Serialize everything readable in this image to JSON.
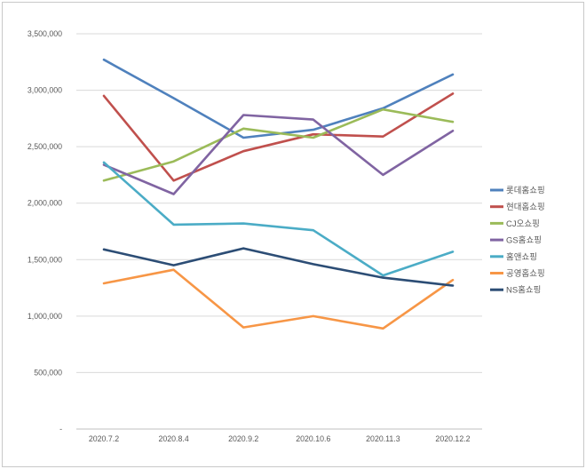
{
  "chart_data": {
    "type": "line",
    "title": "",
    "categories": [
      "2020.7.2",
      "2020.8.4",
      "2020.9.2",
      "2020.10.6",
      "2020.11.3",
      "2020.12.2"
    ],
    "series": [
      {
        "id": "lotte-home-shopping",
        "name": "롯데홈쇼핑",
        "color": "#4F81BD",
        "values": [
          3270000,
          2930000,
          2580000,
          2650000,
          2840000,
          3140000
        ]
      },
      {
        "id": "hyundai-home-shopping",
        "name": "현대홈쇼핑",
        "color": "#C0504D",
        "values": [
          2950000,
          2200000,
          2460000,
          2610000,
          2590000,
          2970000
        ]
      },
      {
        "id": "cj-o-shopping",
        "name": "CJ오쇼핑",
        "color": "#9BBB59",
        "values": [
          2200000,
          2370000,
          2660000,
          2580000,
          2830000,
          2720000
        ]
      },
      {
        "id": "gs-home-shopping",
        "name": "GS홈쇼핑",
        "color": "#8064A2",
        "values": [
          2340000,
          2080000,
          2780000,
          2740000,
          2250000,
          2640000
        ]
      },
      {
        "id": "home-and-shopping",
        "name": "홈앤쇼핑",
        "color": "#4BACC6",
        "values": [
          2360000,
          1810000,
          1820000,
          1760000,
          1360000,
          1570000
        ]
      },
      {
        "id": "gongyoung-home-shopping",
        "name": "공영홈쇼핑",
        "color": "#F79646",
        "values": [
          1290000,
          1410000,
          900000,
          1000000,
          890000,
          1320000
        ]
      },
      {
        "id": "ns-home-shopping",
        "name": "NS홈쇼핑",
        "color": "#2C4D75",
        "values": [
          1590000,
          1450000,
          1600000,
          1460000,
          1340000,
          1270000
        ]
      }
    ],
    "y_axis": {
      "min": 0,
      "max": 3500000,
      "tick_step": 500000,
      "tick_labels": [
        {
          "label": "3,500,000",
          "value": 3500000
        },
        {
          "label": "3,000,000",
          "value": 3000000
        },
        {
          "label": "2,500,000",
          "value": 2500000
        },
        {
          "label": "2,000,000",
          "value": 2000000
        },
        {
          "label": "1,500,000",
          "value": 1500000
        },
        {
          "label": "1,000,000",
          "value": 1000000
        },
        {
          "label": "500,000",
          "value": 500000
        },
        {
          "label": "-",
          "value": 0
        }
      ]
    },
    "grid": "horizontal",
    "legend_position": "right",
    "colors": {
      "gridline": "#d9d9d9",
      "axis_line": "#bfbfbf",
      "axis_text": "#595959",
      "legend_text": "#595959",
      "background": "#ffffff",
      "border": "#c9c9c9"
    }
  }
}
